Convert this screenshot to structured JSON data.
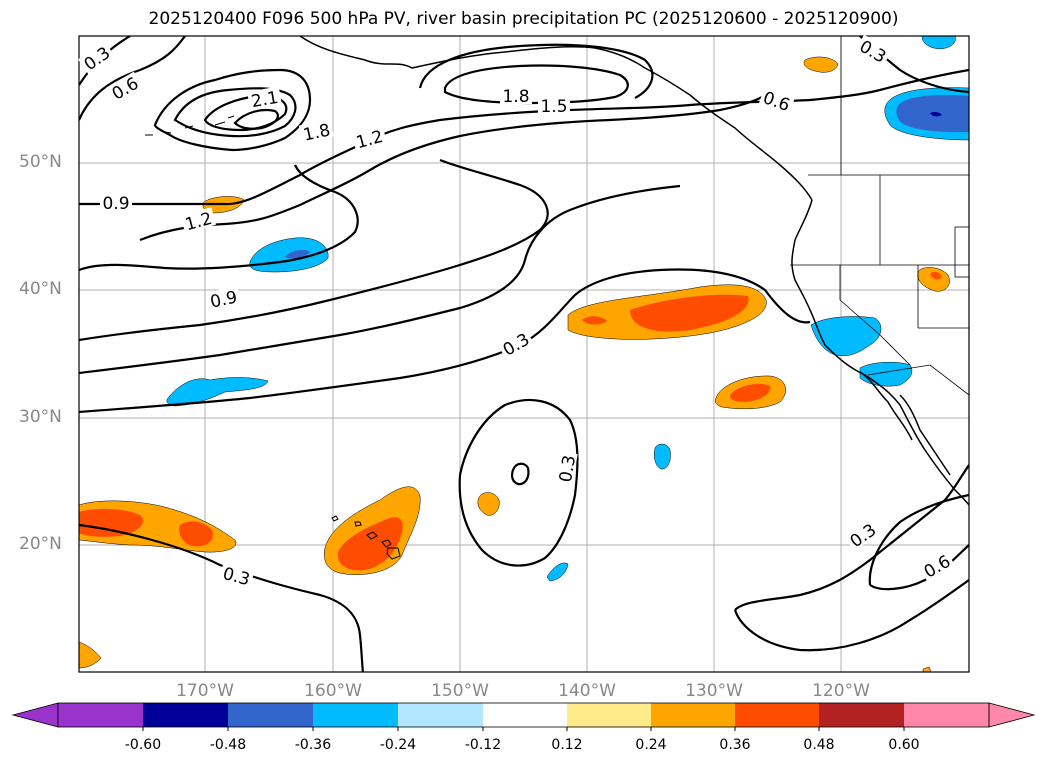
{
  "title": "2025120400 F096 500 hPa PV, river basin precipitation PC (2025120600 - 2025120900)",
  "lat_labels": [
    "50°N",
    "40°N",
    "30°N",
    "20°N"
  ],
  "lon_labels": [
    "170°W",
    "160°W",
    "150°W",
    "140°W",
    "130°W",
    "120°W"
  ],
  "contour_labels": [
    "0.3",
    "0.6",
    "2.1",
    "1.8",
    "1.5",
    "0.6",
    "0.3",
    "1.8",
    "1.2",
    "0.9",
    "1.2",
    "0.9",
    "0.3",
    "0.3",
    "0.3",
    "0.3",
    "0.6"
  ],
  "colorbar": {
    "labels": [
      "-0.60",
      "-0.48",
      "-0.36",
      "-0.24",
      "-0.12",
      "0.12",
      "0.24",
      "0.36",
      "0.48",
      "0.60"
    ],
    "colors": [
      "#9933cc",
      "#000099",
      "#3366cc",
      "#00bbff",
      "#b3e6ff",
      "#ffffff",
      "#ffeb8a",
      "#ffa500",
      "#ff4d00",
      "#b22222",
      "#ff88aa",
      "#ff88aa"
    ]
  }
}
